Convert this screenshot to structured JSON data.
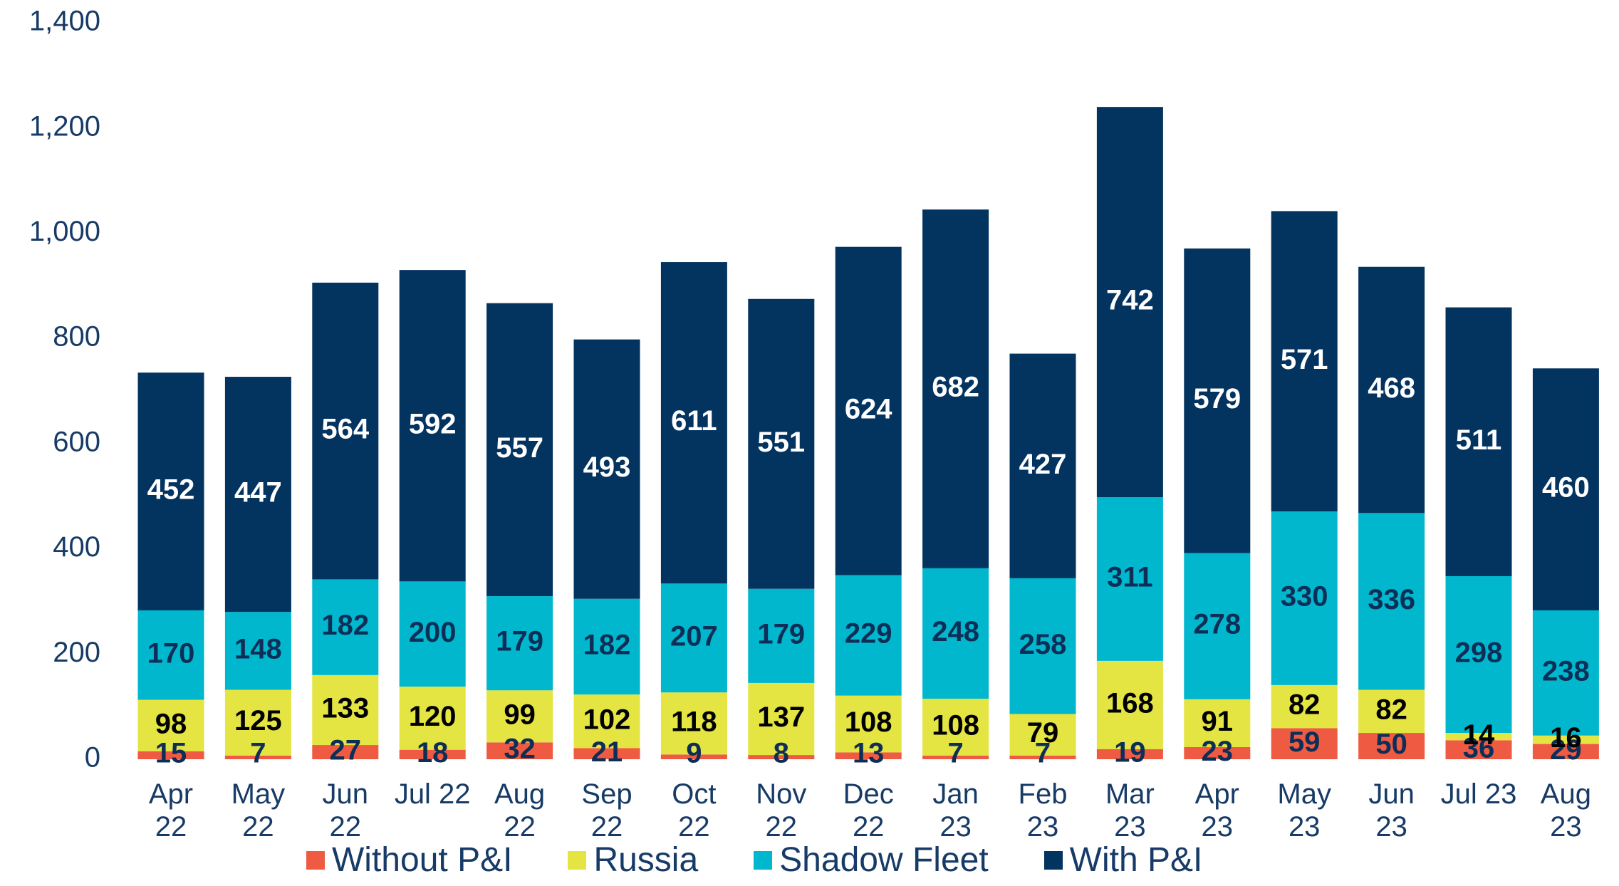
{
  "chart_data": {
    "type": "stacked_bar",
    "categories": [
      "Apr\n22",
      "May\n22",
      "Jun\n22",
      "Jul 22",
      "Aug\n22",
      "Sep\n22",
      "Oct\n22",
      "Nov\n22",
      "Dec\n22",
      "Jan\n23",
      "Feb\n23",
      "Mar\n23",
      "Apr\n23",
      "May\n23",
      "Jun\n23",
      "Jul 23",
      "Aug\n23"
    ],
    "series": [
      {
        "name": "Without P&I",
        "color": "#ee5a42",
        "label_color": "#0d2f57",
        "values": [
          15,
          7,
          27,
          18,
          32,
          21,
          9,
          8,
          13,
          7,
          7,
          19,
          23,
          59,
          50,
          36,
          29
        ]
      },
      {
        "name": "Russia",
        "color": "#e4e443",
        "label_color": "#000000",
        "values": [
          98,
          125,
          133,
          120,
          99,
          102,
          118,
          137,
          108,
          108,
          79,
          168,
          91,
          82,
          82,
          14,
          16
        ]
      },
      {
        "name": "Shadow Fleet",
        "color": "#00b7cd",
        "label_color": "#0d2f57",
        "values": [
          170,
          148,
          182,
          200,
          179,
          182,
          207,
          179,
          229,
          248,
          258,
          311,
          278,
          330,
          336,
          298,
          238
        ]
      },
      {
        "name": "With P&I",
        "color": "#03335f",
        "label_color": "#ffffff",
        "values": [
          452,
          447,
          564,
          592,
          557,
          493,
          611,
          551,
          624,
          682,
          427,
          742,
          579,
          571,
          468,
          511,
          460
        ]
      }
    ],
    "ylim": [
      0,
      1400
    ],
    "yticks": [
      0,
      {
        "value": 200,
        "label": "200"
      },
      400,
      600,
      800,
      {
        "value": 1000,
        "label": "1,000"
      },
      {
        "value": 1200,
        "label": "1,200"
      },
      {
        "value": 1400,
        "label": "1,400"
      }
    ],
    "legend": "bottom"
  }
}
